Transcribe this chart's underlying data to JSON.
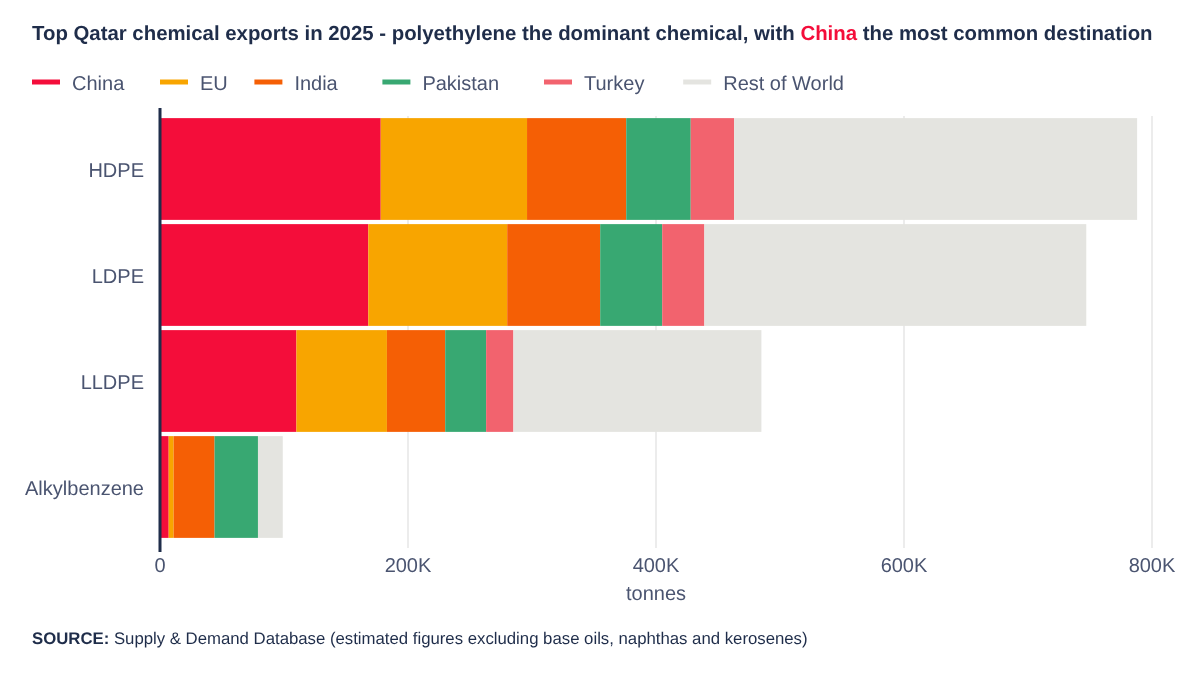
{
  "chart_data": {
    "type": "bar",
    "orientation": "horizontal",
    "stacked": true,
    "title": "Top Qatar chemical exports in 2025 - polyethylene the dominant chemical, with China the most common destination",
    "categories": [
      "HDPE",
      "LDPE",
      "LLDPE",
      "Alkylbenzene"
    ],
    "series": [
      {
        "name": "China",
        "color": "#f40d3a",
        "values": [
          178000,
          168000,
          110000,
          7000
        ]
      },
      {
        "name": "EU",
        "color": "#f8a500",
        "values": [
          118000,
          112000,
          73000,
          4000
        ]
      },
      {
        "name": "India",
        "color": "#f55f05",
        "values": [
          80000,
          75000,
          47000,
          33000
        ]
      },
      {
        "name": "Pakistan",
        "color": "#38a872",
        "values": [
          52000,
          50000,
          33000,
          35000
        ]
      },
      {
        "name": "Turkey",
        "color": "#f2636e",
        "values": [
          35000,
          34000,
          22000,
          0
        ]
      },
      {
        "name": "Rest of World",
        "color": "#e4e4e0",
        "values": [
          325000,
          308000,
          200000,
          20000
        ]
      }
    ],
    "xlim": [
      0,
      800000
    ],
    "xticks": [
      0,
      {
        "value": 200000,
        "label": "200K"
      },
      {
        "value": 400000,
        "label": "400K"
      },
      {
        "value": 600000,
        "label": "600K"
      },
      {
        "value": 800000,
        "label": "800K"
      }
    ],
    "xlabel": "tonnes",
    "grid": "x",
    "legend": "top left",
    "annotations": [
      "SOURCE: Supply & Demand Database (estimated figures excluding base oils, naphthas and kerosenes)"
    ]
  }
}
